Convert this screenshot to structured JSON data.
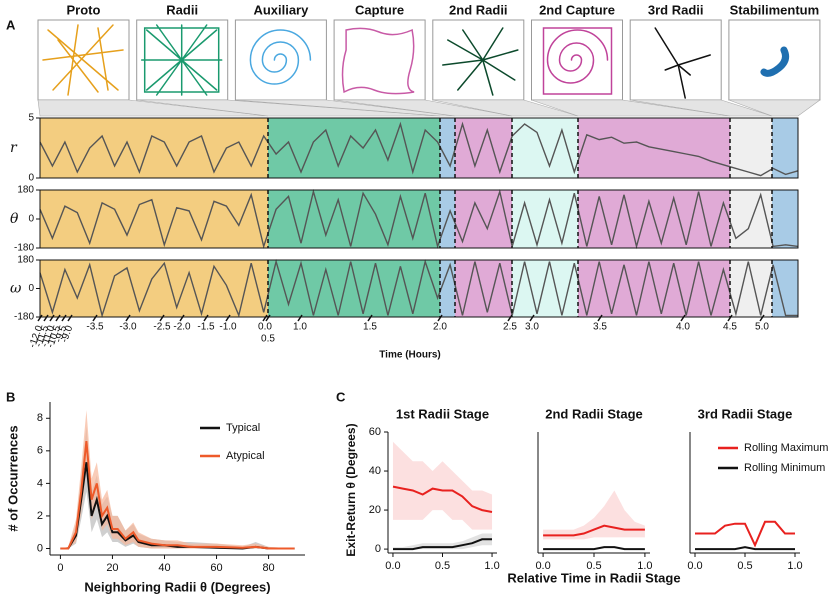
{
  "panel_labels": [
    "A",
    "B",
    "C"
  ],
  "chart_data": [
    {
      "type": "timeline",
      "xlabel": "Time (Hours)",
      "stages": [
        {
          "name": "Proto",
          "color": "#f3cd80"
        },
        {
          "name": "Radii",
          "color": "#6fc9a6"
        },
        {
          "name": "Auxiliary",
          "color": "#a8cbe6"
        },
        {
          "name": "Capture",
          "color": "#e0aad6"
        },
        {
          "name": "2nd Radii",
          "color": "#dcf7f2"
        },
        {
          "name": "2nd Capture",
          "color": "#e0aad6"
        },
        {
          "name": "3rd Radii",
          "color": "#efefef"
        },
        {
          "name": "Stabilimentum",
          "color": "#a8cbe6"
        }
      ],
      "xticks": [
        {
          "value": -12.0,
          "label": "-12.0"
        },
        {
          "value": -11.5,
          "label": "-11.5"
        },
        {
          "value": -11.0,
          "label": "-11.0"
        },
        {
          "value": -10.5,
          "label": "-10.5"
        },
        {
          "value": -9.5,
          "label": "-9.5"
        },
        {
          "value": -9.0,
          "label": "-9.0"
        },
        {
          "value": -3.5,
          "label": "-3.5"
        },
        {
          "value": -3.0,
          "label": "-3.0"
        },
        {
          "value": -2.5,
          "label": "-2.5"
        },
        {
          "value": -2.0,
          "label": "-2.0"
        },
        {
          "value": -1.5,
          "label": "-1.5"
        },
        {
          "value": -1.0,
          "label": "-1.0"
        },
        {
          "value": 0.0,
          "label": "0.0"
        },
        {
          "value": 0.5,
          "label": "0.5"
        },
        {
          "value": 1.0,
          "label": "1.0"
        },
        {
          "value": 1.5,
          "label": "1.5"
        },
        {
          "value": 2.0,
          "label": "2.0"
        },
        {
          "value": 2.5,
          "label": "2.5"
        },
        {
          "value": 3.0,
          "label": "3.0"
        },
        {
          "value": 3.5,
          "label": "3.5"
        },
        {
          "value": 4.0,
          "label": "4.0"
        },
        {
          "value": 4.5,
          "label": "4.5"
        },
        {
          "value": 5.0,
          "label": "5.0"
        }
      ],
      "tracks": [
        {
          "ylabel": "r",
          "ylim": [
            0,
            5
          ],
          "yticks": [
            0,
            5
          ],
          "color": "#555555",
          "values": [
            3,
            1,
            3,
            0.5,
            2.5,
            3.5,
            1,
            3,
            0.5,
            3.5,
            3,
            1,
            3,
            3.5,
            0.5,
            2.5,
            3,
            1,
            3.5,
            2,
            3,
            0.5,
            3,
            4,
            1,
            3.5,
            2.5,
            4,
            1.5,
            4.5,
            0.5,
            4,
            3,
            1,
            4.5,
            1,
            4,
            0.5,
            3.5,
            4.5,
            3.8,
            1,
            4,
            0.5,
            3.6,
            3.2,
            3.4,
            2.9,
            3,
            2.6,
            2.4,
            2.2,
            2,
            1.8,
            1.4,
            1.1,
            0.8,
            0.5,
            0.2,
            0.8,
            0.3,
            0.6
          ]
        },
        {
          "ylabel": "θ",
          "ylim": [
            -180,
            180
          ],
          "yticks": [
            -180,
            0,
            180
          ],
          "color": "#555555",
          "values": [
            60,
            -120,
            80,
            40,
            -150,
            100,
            60,
            -100,
            90,
            120,
            -160,
            70,
            50,
            -130,
            110,
            80,
            -40,
            150,
            -170,
            60,
            140,
            -150,
            170,
            -100,
            120,
            -170,
            160,
            30,
            -160,
            140,
            -120,
            160,
            -170,
            50,
            -140,
            100,
            -60,
            170,
            -170,
            100,
            -160,
            120,
            -150,
            160,
            -170,
            140,
            -160,
            150,
            -170,
            110,
            -150,
            130,
            -160,
            170,
            -170,
            100,
            -120,
            -60,
            150,
            -170,
            -160,
            -170
          ]
        },
        {
          "ylabel": "ω",
          "ylim": [
            -180,
            180
          ],
          "yticks": [
            -180,
            0,
            180
          ],
          "color": "#555555",
          "values": [
            100,
            -150,
            120,
            -60,
            150,
            -170,
            80,
            130,
            -140,
            60,
            160,
            -120,
            100,
            -160,
            140,
            20,
            -170,
            160,
            -150,
            170,
            -100,
            160,
            -170,
            120,
            -170,
            170,
            -160,
            160,
            -170,
            140,
            -160,
            170,
            -60,
            150,
            -170,
            170,
            -150,
            160,
            -170,
            170,
            -160,
            170,
            -170,
            160,
            -170,
            170,
            -160,
            150,
            -170,
            170,
            -160,
            160,
            -170,
            170,
            -170,
            120,
            -160,
            170,
            -170,
            150,
            -170,
            -170
          ]
        }
      ]
    },
    {
      "type": "line",
      "xlabel": "Neighboring Radii θ (Degrees)",
      "ylabel": "# of Occurrences",
      "xlim": [
        -4,
        94
      ],
      "ylim": [
        -0.4,
        9
      ],
      "xticks": [
        0,
        20,
        40,
        60,
        80
      ],
      "yticks": [
        0,
        2,
        4,
        6,
        8
      ],
      "x": [
        0,
        3,
        6,
        8,
        10,
        12,
        14,
        16,
        18,
        20,
        22,
        25,
        28,
        30,
        35,
        40,
        45,
        50,
        60,
        70,
        75,
        80,
        90
      ],
      "series": [
        {
          "name": "Typical",
          "color": "#111111",
          "band_color": "#bbbbbb",
          "values": [
            0,
            0,
            0.8,
            3,
            5.3,
            2,
            3,
            1.5,
            2,
            1,
            1,
            0.5,
            0.8,
            0.4,
            0.2,
            0.2,
            0.1,
            0.1,
            0.05,
            0,
            0.1,
            0,
            0
          ],
          "lower": [
            0,
            0,
            0.3,
            1.8,
            3.5,
            1,
            1.8,
            0.7,
            1,
            0.4,
            0.4,
            0.1,
            0.3,
            0.1,
            0,
            0,
            0,
            0,
            0,
            0,
            0,
            0,
            0
          ],
          "upper": [
            0,
            0.1,
            1.5,
            4.5,
            7.5,
            3.5,
            4.5,
            2.7,
            3.2,
            2,
            2,
            1.1,
            1.5,
            0.9,
            0.6,
            0.5,
            0.4,
            0.4,
            0.3,
            0.1,
            0.4,
            0.1,
            0
          ]
        },
        {
          "name": "Atypical",
          "color": "#ee5a2a",
          "band_color": "#f6b69a",
          "values": [
            0,
            0,
            1,
            3.5,
            6.6,
            3,
            4,
            2,
            2.5,
            1.2,
            1.2,
            0.6,
            1,
            0.5,
            0.3,
            0.2,
            0.2,
            0.1,
            0.1,
            0.05,
            0.1,
            0,
            0
          ],
          "lower": [
            0,
            0,
            0.4,
            2.2,
            4.8,
            1.8,
            2.7,
            1.1,
            1.5,
            0.6,
            0.6,
            0.2,
            0.4,
            0.1,
            0,
            0,
            0,
            0,
            0,
            0,
            0,
            0,
            0
          ],
          "upper": [
            0,
            0.1,
            1.8,
            5,
            8.5,
            4.3,
            5.3,
            3,
            3.6,
            2,
            2,
            1.1,
            1.6,
            1,
            0.6,
            0.5,
            0.5,
            0.3,
            0.3,
            0.2,
            0.3,
            0.1,
            0
          ]
        }
      ]
    },
    {
      "type": "line",
      "title": "1st Radii Stage",
      "ylabel": "Exit-Return θ (Degrees)",
      "xlim": [
        -0.05,
        1.05
      ],
      "ylim": [
        -2,
        60
      ],
      "xticks": [
        {
          "value": 0,
          "label": "0.0"
        },
        {
          "value": 0.5,
          "label": "0.5"
        },
        {
          "value": 1,
          "label": "1.0"
        }
      ],
      "yticks": [
        0,
        20,
        40,
        60
      ],
      "x": [
        0,
        0.1,
        0.2,
        0.3,
        0.4,
        0.5,
        0.6,
        0.7,
        0.8,
        0.9,
        1
      ],
      "series": [
        {
          "color": "#e8211f",
          "band_color": "#fbd3d3",
          "values": [
            32,
            31,
            30,
            28,
            31,
            30,
            30,
            27,
            22,
            20,
            19
          ],
          "lower": [
            15,
            15,
            15,
            15,
            20,
            20,
            15,
            15,
            10,
            10,
            10
          ],
          "upper": [
            55,
            50,
            45,
            45,
            40,
            45,
            40,
            35,
            30,
            30,
            28
          ]
        },
        {
          "color": "#111111",
          "band_color": "#d5d5d5",
          "values": [
            0,
            0,
            0,
            1,
            1,
            1,
            1,
            2,
            3,
            5,
            5
          ],
          "lower": [
            0,
            0,
            0,
            0,
            0,
            0,
            0,
            0,
            1,
            2,
            2
          ],
          "upper": [
            1,
            1,
            2,
            3,
            3,
            3,
            3,
            4,
            6,
            8,
            8
          ]
        }
      ]
    },
    {
      "type": "line",
      "title": "2nd Radii Stage",
      "xlabel": "Relative Time in Radii Stage",
      "xlim": [
        -0.05,
        1.05
      ],
      "ylim": [
        -2,
        60
      ],
      "xticks": [
        {
          "value": 0,
          "label": "0.0"
        },
        {
          "value": 0.5,
          "label": "0.5"
        },
        {
          "value": 1,
          "label": "1.0"
        }
      ],
      "x": [
        0,
        0.1,
        0.2,
        0.3,
        0.4,
        0.5,
        0.6,
        0.7,
        0.8,
        0.9,
        1
      ],
      "series": [
        {
          "color": "#e8211f",
          "band_color": "#fbd3d3",
          "values": [
            7,
            7,
            7,
            7,
            8,
            10,
            12,
            11,
            10,
            10,
            10
          ],
          "lower": [
            5,
            5,
            5,
            5,
            5,
            6,
            6,
            6,
            6,
            6,
            6
          ],
          "upper": [
            10,
            10,
            10,
            10,
            12,
            16,
            22,
            30,
            20,
            14,
            12
          ]
        },
        {
          "color": "#111111",
          "values": [
            0,
            0,
            0,
            0,
            0,
            0,
            1,
            1,
            0,
            0,
            0
          ]
        }
      ]
    },
    {
      "type": "line",
      "title": "3rd Radii Stage",
      "xlim": [
        -0.05,
        1.05
      ],
      "ylim": [
        -2,
        60
      ],
      "xticks": [
        {
          "value": 0,
          "label": "0.0"
        },
        {
          "value": 0.5,
          "label": "0.5"
        },
        {
          "value": 1,
          "label": "1.0"
        }
      ],
      "x": [
        0,
        0.1,
        0.2,
        0.3,
        0.4,
        0.5,
        0.6,
        0.7,
        0.8,
        0.9,
        1
      ],
      "series": [
        {
          "name": "Rolling Maximum",
          "color": "#e8211f",
          "values": [
            8,
            8,
            8,
            12,
            13,
            13,
            2,
            14,
            14,
            8,
            8
          ]
        },
        {
          "name": "Rolling Minimum",
          "color": "#111111",
          "values": [
            0,
            0,
            0,
            0,
            0,
            1,
            0,
            0,
            0,
            0,
            0
          ]
        }
      ]
    }
  ]
}
